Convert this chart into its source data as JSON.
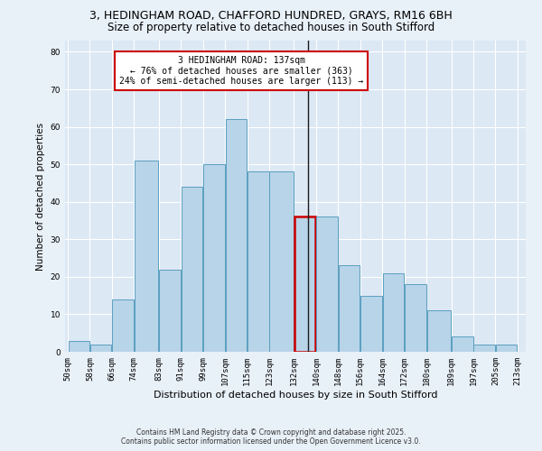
{
  "title": "3, HEDINGHAM ROAD, CHAFFORD HUNDRED, GRAYS, RM16 6BH",
  "subtitle": "Size of property relative to detached houses in South Stifford",
  "xlabel": "Distribution of detached houses by size in South Stifford",
  "ylabel": "Number of detached properties",
  "footnote1": "Contains HM Land Registry data © Crown copyright and database right 2025.",
  "footnote2": "Contains public sector information licensed under the Open Government Licence v3.0.",
  "annotation_title": "3 HEDINGHAM ROAD: 137sqm",
  "annotation_line2": "← 76% of detached houses are smaller (363)",
  "annotation_line3": "24% of semi-detached houses are larger (113) →",
  "property_size": 137,
  "bar_left_edges": [
    50,
    58,
    66,
    74,
    83,
    91,
    99,
    107,
    115,
    123,
    132,
    140,
    148,
    156,
    164,
    172,
    180,
    189,
    197,
    205
  ],
  "bar_widths": [
    8,
    8,
    8,
    9,
    8,
    8,
    8,
    8,
    8,
    9,
    8,
    8,
    8,
    8,
    8,
    8,
    9,
    8,
    8,
    8
  ],
  "bar_heights": [
    3,
    2,
    14,
    51,
    22,
    44,
    50,
    62,
    48,
    48,
    36,
    36,
    23,
    15,
    21,
    18,
    11,
    4,
    2,
    2
  ],
  "tick_labels": [
    "50sqm",
    "58sqm",
    "66sqm",
    "74sqm",
    "83sqm",
    "91sqm",
    "99sqm",
    "107sqm",
    "115sqm",
    "123sqm",
    "132sqm",
    "140sqm",
    "148sqm",
    "156sqm",
    "164sqm",
    "172sqm",
    "180sqm",
    "189sqm",
    "197sqm",
    "205sqm",
    "213sqm"
  ],
  "bar_color": "#b8d4e8",
  "bar_edge_color": "#5a9fc0",
  "highlight_color": "#cc0000",
  "vline_color": "#1a1a1a",
  "bg_color": "#e8f0f8",
  "plot_bg_color": "#dce8f4",
  "grid_color": "#ffffff",
  "ylim": [
    0,
    83
  ],
  "yticks": [
    0,
    10,
    20,
    30,
    40,
    50,
    60,
    70,
    80
  ],
  "title_fontsize": 9,
  "subtitle_fontsize": 8.5,
  "tick_fontsize": 6.5,
  "ylabel_fontsize": 7.5,
  "xlabel_fontsize": 8
}
